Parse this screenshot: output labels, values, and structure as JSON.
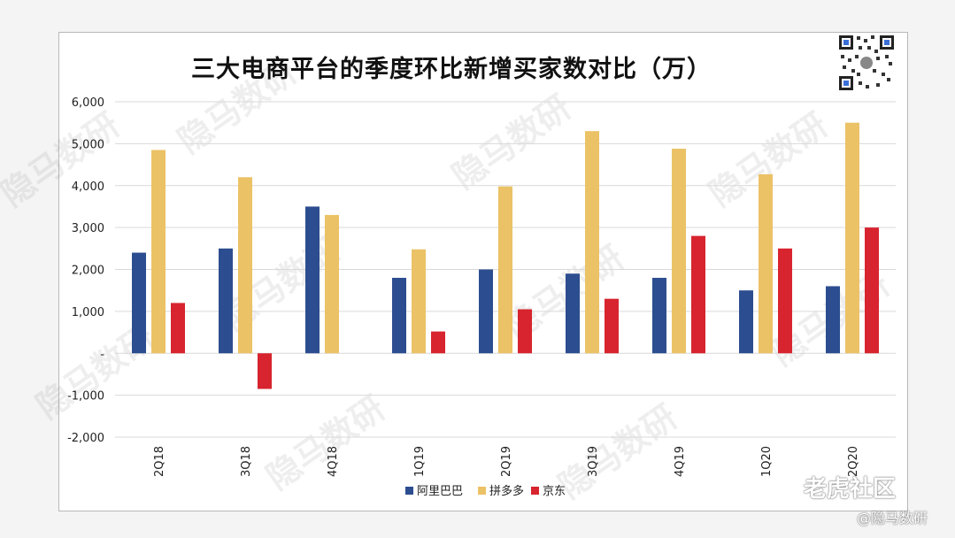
{
  "watermark": "隐马数研",
  "tiger_label": "老虎社区",
  "handle_label": "@隐马数研",
  "chart_data": {
    "type": "bar",
    "title": "三大电商平台的季度环比新增买家数对比（万）",
    "categories": [
      "2Q18",
      "3Q18",
      "4Q18",
      "1Q19",
      "2Q19",
      "3Q19",
      "4Q19",
      "1Q20",
      "2Q20"
    ],
    "series": [
      {
        "name": "阿里巴巴",
        "color": "#2c4d8f",
        "values": [
          2400,
          2500,
          3500,
          1800,
          2000,
          1900,
          1800,
          1500,
          1600
        ]
      },
      {
        "name": "拼多多",
        "color": "#ebc266",
        "values": [
          4850,
          4200,
          3300,
          2480,
          3980,
          5300,
          4880,
          4270,
          5500
        ]
      },
      {
        "name": "京东",
        "color": "#d7242f",
        "values": [
          1200,
          -850,
          null,
          520,
          1050,
          1300,
          2800,
          2500,
          3000
        ]
      }
    ],
    "ylim": [
      -2000,
      6000
    ],
    "yticks": [
      6000,
      5000,
      4000,
      3000,
      2000,
      1000,
      0,
      -1000,
      -2000
    ],
    "ytick_labels": [
      "6,000",
      "5,000",
      "4,000",
      "3,000",
      "2,000",
      "1,000",
      "-",
      "-1,000",
      "-2,000"
    ],
    "grid": true,
    "legend_position": "bottom"
  }
}
